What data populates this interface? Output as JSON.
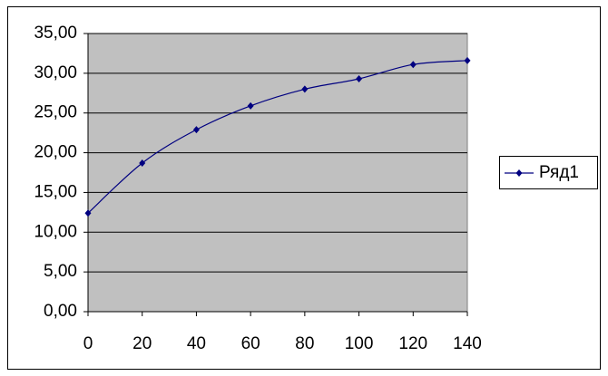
{
  "chart_data": {
    "type": "line",
    "x": [
      0,
      20,
      40,
      60,
      80,
      100,
      120,
      140
    ],
    "series": [
      {
        "name": "Ряд1",
        "color": "#000080",
        "values": [
          12.4,
          18.7,
          22.9,
          25.9,
          28.0,
          29.3,
          31.1,
          31.6
        ]
      }
    ],
    "xlim": [
      0,
      140
    ],
    "xticks": [
      0,
      20,
      40,
      60,
      80,
      100,
      120,
      140
    ],
    "ylim": [
      0,
      35
    ],
    "yticks": [
      {
        "value": 0,
        "label": "0,00"
      },
      {
        "value": 5,
        "label": "5,00"
      },
      {
        "value": 10,
        "label": "10,00"
      },
      {
        "value": 15,
        "label": "15,00"
      },
      {
        "value": 20,
        "label": "20,00"
      },
      {
        "value": 25,
        "label": "25,00"
      },
      {
        "value": 30,
        "label": "30,00"
      },
      {
        "value": 35,
        "label": "35,00"
      }
    ],
    "grid": true,
    "smooth": true,
    "legend": "right",
    "plot_background": "#c0c0c0"
  }
}
